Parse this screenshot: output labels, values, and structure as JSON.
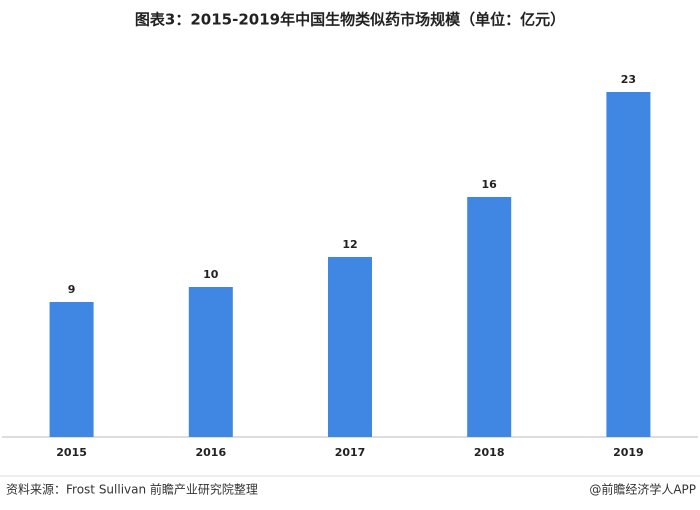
{
  "chart_data": {
    "type": "bar",
    "title": "图表3：2015-2019年中国生物类似药市场规模（单位：亿元）",
    "categories": [
      "2015",
      "2016",
      "2017",
      "2018",
      "2019"
    ],
    "values": [
      9,
      10,
      12,
      16,
      23
    ],
    "color": "#3f87e3",
    "ylim": [
      0,
      25
    ],
    "source": "资料来源：Frost Sullivan 前瞻产业研究院整理",
    "credit": "@前瞻经济学人APP"
  }
}
